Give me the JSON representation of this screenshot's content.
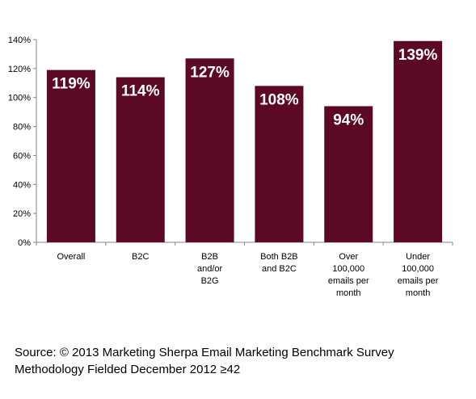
{
  "chart_data": {
    "type": "bar",
    "categories": [
      [
        "Overall"
      ],
      [
        "B2C"
      ],
      [
        "B2B",
        "and/or",
        "B2G"
      ],
      [
        "Both B2B",
        "and B2C"
      ],
      [
        "Over",
        "100,000",
        "emails per",
        "month"
      ],
      [
        "Under",
        "100,000",
        "emails per",
        "month"
      ]
    ],
    "values": [
      119,
      114,
      127,
      108,
      94,
      139
    ],
    "data_labels": [
      "119%",
      "114%",
      "127%",
      "108%",
      "94%",
      "139%"
    ],
    "ylim": [
      0,
      140
    ],
    "yticks": [
      0,
      20,
      40,
      60,
      80,
      100,
      120,
      140
    ],
    "ytick_labels": [
      "0%",
      "20%",
      "40%",
      "60%",
      "80%",
      "100%",
      "120%",
      "140%"
    ],
    "bar_color": "#5c0a24",
    "grid": false,
    "legend": false
  },
  "source": {
    "line1": "Source: © 2013 Marketing Sherpa Email Marketing Benchmark Survey",
    "line2": "Methodology Fielded December 2012 ≥42"
  }
}
